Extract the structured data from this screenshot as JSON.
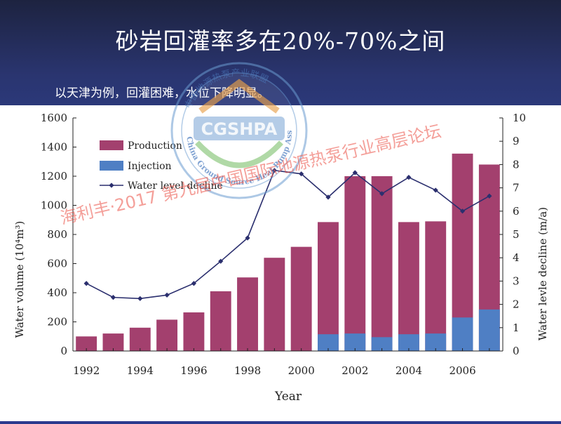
{
  "slide": {
    "title": "砂岩回灌率多在20%-70%之间",
    "subtitle": "以天津为例，回灌困难，水位下降明显。"
  },
  "watermarks": {
    "seal_acronym": "CGSHPA",
    "seal_ring_text": "China Ground Source Heat Pump Association",
    "seal_top_text": "中国地源热泵产业联盟",
    "banner": "海利丰·2017 第九届中国国际地源热泵行业高层论坛"
  },
  "colors": {
    "production": "#a3406e",
    "injection": "#4f7fc4",
    "line": "#2b2f6e"
  },
  "chart_data": {
    "type": "bar",
    "xlabel": "Year",
    "ylabel": "Water volume (10⁴m³)",
    "y2label": "Water levle decline (m/a)",
    "ylim": [
      0,
      1600
    ],
    "y2lim": [
      0,
      10
    ],
    "yticks": [
      "0",
      "200",
      "400",
      "600",
      "800",
      "1000",
      "1200",
      "1400",
      "1600"
    ],
    "y2ticks": [
      "0",
      "1",
      "2",
      "3",
      "4",
      "5",
      "6",
      "7",
      "8",
      "9",
      "10"
    ],
    "xtick_labels": [
      "1992",
      "1994",
      "1996",
      "1998",
      "2000",
      "2002",
      "2004",
      "2006"
    ],
    "legend_position": "top-left",
    "categories": [
      1992,
      1993,
      1994,
      1995,
      1996,
      1997,
      1998,
      1999,
      2000,
      2001,
      2002,
      2003,
      2004,
      2005,
      2006,
      2007
    ],
    "series": [
      {
        "name": "Production",
        "type": "bar",
        "axis": "left",
        "values": [
          100,
          120,
          160,
          215,
          265,
          410,
          505,
          640,
          715,
          885,
          1200,
          1200,
          885,
          890,
          1355,
          1280
        ]
      },
      {
        "name": "Injection",
        "type": "bar",
        "axis": "left",
        "values": [
          0,
          0,
          0,
          0,
          0,
          0,
          0,
          0,
          0,
          115,
          120,
          95,
          115,
          120,
          230,
          285
        ]
      },
      {
        "name": "Water level decline",
        "type": "line",
        "axis": "right",
        "values": [
          2.9,
          2.3,
          2.25,
          2.4,
          2.9,
          3.85,
          4.85,
          7.75,
          7.6,
          6.6,
          7.65,
          6.75,
          7.45,
          6.9,
          6.0,
          6.65
        ]
      }
    ]
  }
}
